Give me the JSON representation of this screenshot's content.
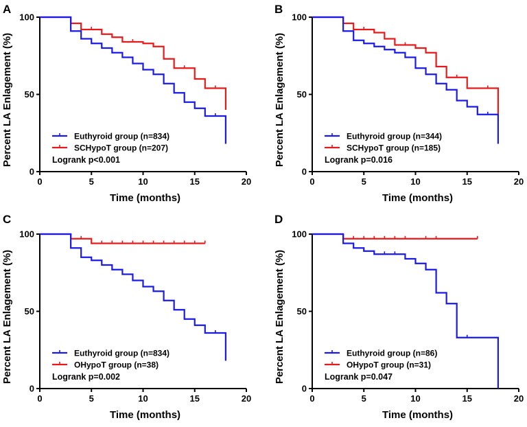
{
  "figure": {
    "colors": {
      "blue": "#1a1ae6",
      "red": "#e61a1a",
      "axis": "#000000"
    }
  },
  "chart_data": [
    {
      "panel": "A",
      "type": "line",
      "subtype": "kaplan-meier step",
      "xlabel": "Time (months)",
      "ylabel": "Percent LA Enlagement (%)",
      "xlim": [
        0,
        20
      ],
      "ylim": [
        0,
        100
      ],
      "xticks": [
        0,
        5,
        10,
        15,
        20
      ],
      "yticks": [
        0,
        50,
        100
      ],
      "stat": "Logrank p<0.001",
      "legend_position": "bottom-left",
      "series": [
        {
          "name": "Euthyroid group (n=834)",
          "color": "#1a1ae6",
          "steps": [
            [
              0,
              100
            ],
            [
              3,
              91
            ],
            [
              4,
              86
            ],
            [
              5,
              83
            ],
            [
              6,
              80
            ],
            [
              7,
              77
            ],
            [
              8,
              74
            ],
            [
              9,
              70
            ],
            [
              10,
              66
            ],
            [
              11,
              63
            ],
            [
              12,
              57
            ],
            [
              13,
              51
            ],
            [
              14,
              45
            ],
            [
              15,
              41
            ],
            [
              16,
              36
            ],
            [
              18,
              18
            ]
          ],
          "end_x": 18,
          "censor": [
            [
              17,
              36
            ]
          ]
        },
        {
          "name": "SCHypoT group (n=207)",
          "color": "#e61a1a",
          "steps": [
            [
              0,
              100
            ],
            [
              3,
              96
            ],
            [
              4,
              92
            ],
            [
              6,
              89
            ],
            [
              7,
              87
            ],
            [
              8,
              84
            ],
            [
              10,
              83
            ],
            [
              11,
              81
            ],
            [
              12,
              73
            ],
            [
              13,
              67
            ],
            [
              15,
              60
            ],
            [
              16,
              54
            ],
            [
              18,
              40
            ]
          ],
          "end_x": 18,
          "censor": [
            [
              5,
              92
            ],
            [
              9,
              84
            ],
            [
              14,
              67
            ],
            [
              17,
              54
            ]
          ]
        }
      ]
    },
    {
      "panel": "B",
      "type": "line",
      "subtype": "kaplan-meier step",
      "xlabel": "Time (months)",
      "ylabel": "Percent LA Enlagement (%)",
      "xlim": [
        0,
        20
      ],
      "ylim": [
        0,
        100
      ],
      "xticks": [
        0,
        5,
        10,
        15,
        20
      ],
      "yticks": [
        0,
        50,
        100
      ],
      "stat": "Logrank p=0.016",
      "legend_position": "bottom-left",
      "series": [
        {
          "name": "Euthyroid group (n=344)",
          "color": "#1a1ae6",
          "steps": [
            [
              0,
              100
            ],
            [
              3,
              91
            ],
            [
              4,
              85
            ],
            [
              5,
              83
            ],
            [
              6,
              81
            ],
            [
              7,
              79
            ],
            [
              8,
              77
            ],
            [
              9,
              74
            ],
            [
              10,
              67
            ],
            [
              11,
              63
            ],
            [
              12,
              57
            ],
            [
              13,
              53
            ],
            [
              14,
              46
            ],
            [
              15,
              42
            ],
            [
              16,
              37
            ],
            [
              18,
              18
            ]
          ],
          "end_x": 18,
          "censor": [
            [
              17,
              37
            ]
          ]
        },
        {
          "name": "SCHypoT group (n=185)",
          "color": "#e61a1a",
          "steps": [
            [
              0,
              100
            ],
            [
              3,
              96
            ],
            [
              4,
              92
            ],
            [
              6,
              90
            ],
            [
              7,
              86
            ],
            [
              8,
              82
            ],
            [
              10,
              80
            ],
            [
              11,
              77
            ],
            [
              12,
              68
            ],
            [
              13,
              61
            ],
            [
              15,
              54
            ],
            [
              18,
              36
            ]
          ],
          "end_x": 18,
          "censor": [
            [
              5,
              92
            ],
            [
              9,
              82
            ],
            [
              14,
              61
            ],
            [
              17,
              54
            ]
          ]
        }
      ]
    },
    {
      "panel": "C",
      "type": "line",
      "subtype": "kaplan-meier step",
      "xlabel": "Time (months)",
      "ylabel": "Percent LA Enlagement (%)",
      "xlim": [
        0,
        20
      ],
      "ylim": [
        0,
        100
      ],
      "xticks": [
        0,
        5,
        10,
        15,
        20
      ],
      "yticks": [
        0,
        50,
        100
      ],
      "stat": "Logrank p=0.002",
      "legend_position": "bottom-left",
      "series": [
        {
          "name": "Euthyroid group (n=834)",
          "color": "#1a1ae6",
          "steps": [
            [
              0,
              100
            ],
            [
              3,
              91
            ],
            [
              4,
              85
            ],
            [
              5,
              83
            ],
            [
              6,
              80
            ],
            [
              7,
              77
            ],
            [
              8,
              74
            ],
            [
              9,
              70
            ],
            [
              10,
              66
            ],
            [
              11,
              63
            ],
            [
              12,
              57
            ],
            [
              13,
              51
            ],
            [
              14,
              45
            ],
            [
              15,
              41
            ],
            [
              16,
              36
            ],
            [
              18,
              18
            ]
          ],
          "end_x": 18,
          "censor": [
            [
              17,
              36
            ]
          ]
        },
        {
          "name": "OHypoT group (n=38)",
          "color": "#e61a1a",
          "steps": [
            [
              0,
              100
            ],
            [
              3,
              97
            ],
            [
              5,
              94
            ]
          ],
          "end_x": 16,
          "censor": [
            [
              4,
              97
            ],
            [
              6,
              94
            ],
            [
              7,
              94
            ],
            [
              8,
              94
            ],
            [
              9,
              94
            ],
            [
              10,
              94
            ],
            [
              11,
              94
            ],
            [
              12,
              94
            ],
            [
              13,
              94
            ],
            [
              14,
              94
            ],
            [
              15,
              94
            ],
            [
              16,
              94
            ]
          ]
        }
      ]
    },
    {
      "panel": "D",
      "type": "line",
      "subtype": "kaplan-meier step",
      "xlabel": "Time (months)",
      "ylabel": "Percent LA Enlagement (%)",
      "xlim": [
        0,
        20
      ],
      "ylim": [
        0,
        100
      ],
      "xticks": [
        0,
        5,
        10,
        15,
        20
      ],
      "yticks": [
        0,
        50,
        100
      ],
      "stat": "Logrank p=0.047",
      "legend_position": "bottom-left",
      "series": [
        {
          "name": "Euthyroid group (n=86)",
          "color": "#1a1ae6",
          "steps": [
            [
              0,
              100
            ],
            [
              3,
              94
            ],
            [
              4,
              91
            ],
            [
              5,
              89
            ],
            [
              6,
              87
            ],
            [
              9,
              84
            ],
            [
              10,
              81
            ],
            [
              11,
              77
            ],
            [
              12,
              62
            ],
            [
              13,
              55
            ],
            [
              14,
              33
            ],
            [
              18,
              0
            ]
          ],
          "end_x": 18,
          "censor": [
            [
              7,
              87
            ],
            [
              8,
              87
            ],
            [
              15,
              33
            ]
          ]
        },
        {
          "name": "OHypoT group (n=31)",
          "color": "#e61a1a",
          "steps": [
            [
              0,
              100
            ],
            [
              3,
              97
            ]
          ],
          "end_x": 16,
          "censor": [
            [
              4,
              97
            ],
            [
              5,
              97
            ],
            [
              6,
              97
            ],
            [
              7,
              97
            ],
            [
              8,
              97
            ],
            [
              9,
              97
            ],
            [
              11,
              97
            ],
            [
              12,
              97
            ],
            [
              16,
              97
            ]
          ]
        }
      ]
    }
  ]
}
